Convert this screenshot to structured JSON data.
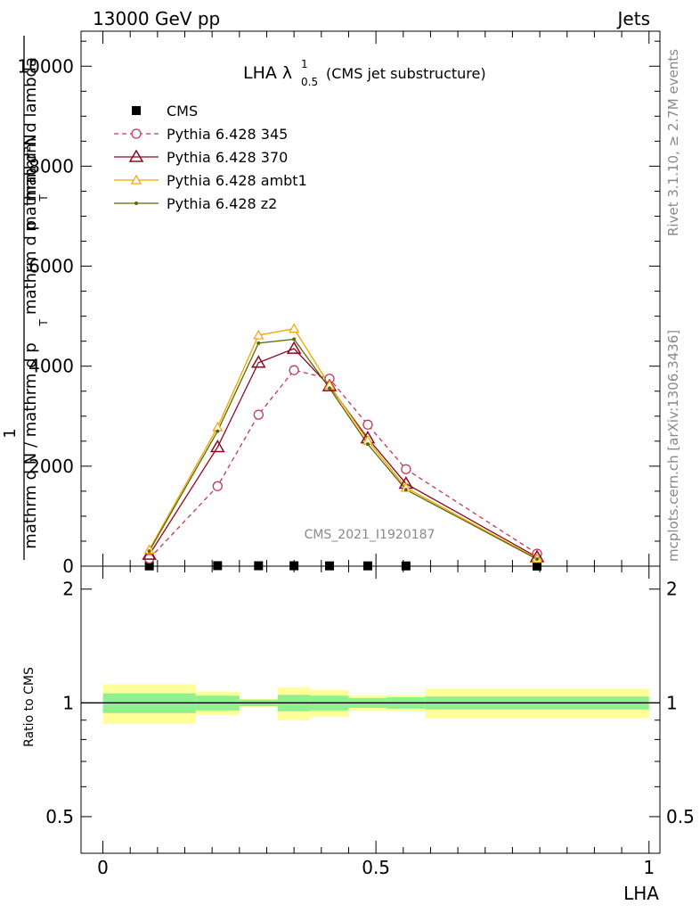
{
  "header": {
    "left": "13000 GeV pp",
    "right": "Jets"
  },
  "side_text": {
    "rivet": "Rivet 3.1.10, ≥ 2.7M events",
    "mcplots": "mcplots.cern.ch [arXiv:1306.3436]"
  },
  "watermark": "CMS_2021_I1920187",
  "chart_data": {
    "type": "line",
    "title": "LHA",
    "title_symbol": "λ",
    "title_sup": "1",
    "title_sub": "0.5",
    "title_note": "(CMS jet substructure)",
    "ylabel_parts": {
      "num_top": "1",
      "num_bottom": "mathrm d²N",
      "den_top": "mathrm d N / mathrm d p",
      "den_bottom": "mathrm d p",
      "den_tail": "mathrm d lambda",
      "sub_T": "T"
    },
    "xlabel": "LHA",
    "ratio_ylabel": "Ratio to CMS",
    "xlim": [
      -0.04,
      1.02
    ],
    "ylim": [
      0,
      10700
    ],
    "ratio_ylim": [
      0.4,
      2.3
    ],
    "main_yticks": [
      0,
      2000,
      4000,
      6000,
      8000,
      10000
    ],
    "main_ytick_labels": [
      "0",
      "2000",
      "4000",
      "6000",
      "8000",
      "10000"
    ],
    "ratio_yticks": [
      0.5,
      1,
      2
    ],
    "ratio_ytick_labels": [
      "0.5",
      "1",
      "2"
    ],
    "xticks": [
      0,
      0.5,
      1
    ],
    "xtick_labels": [
      "0",
      "0.5",
      "1"
    ],
    "bin_edges": [
      0,
      0.17,
      0.25,
      0.32,
      0.38,
      0.45,
      0.52,
      0.59,
      1.0
    ],
    "x": [
      0.085,
      0.21,
      0.285,
      0.35,
      0.415,
      0.485,
      0.555,
      0.795
    ],
    "series": [
      {
        "name": "CMS",
        "kind": "data",
        "color": "#000000",
        "values": [
          5,
          10,
          8,
          8,
          6,
          6,
          5,
          3
        ]
      },
      {
        "name": "Pythia 6.428 345",
        "kind": "mc",
        "color": "#c0395a",
        "dash": true,
        "marker": "circle",
        "values": [
          150,
          1600,
          3030,
          3920,
          3750,
          2830,
          1940,
          250
        ]
      },
      {
        "name": "Pythia 6.428 370",
        "kind": "mc",
        "color": "#8b0a1f",
        "dash": false,
        "marker": "triangle",
        "values": [
          230,
          2380,
          4070,
          4350,
          3600,
          2560,
          1650,
          180
        ]
      },
      {
        "name": "Pythia 6.428 ambt1",
        "kind": "mc",
        "color": "#f0a500",
        "dash": false,
        "marker": "triangle-small",
        "values": [
          330,
          2780,
          4620,
          4750,
          3620,
          2510,
          1570,
          150
        ]
      },
      {
        "name": "Pythia 6.428 z2",
        "kind": "mc",
        "color": "#5b6b00",
        "dash": false,
        "marker": "dot",
        "values": [
          300,
          2700,
          4460,
          4540,
          3560,
          2440,
          1530,
          140
        ]
      }
    ],
    "ratio_band_inner": {
      "color": "#90f090",
      "lo": [
        0.94,
        0.955,
        0.98,
        0.95,
        0.955,
        0.97,
        0.965,
        0.96
      ],
      "hi": [
        1.06,
        1.045,
        1.02,
        1.05,
        1.045,
        1.03,
        1.035,
        1.04
      ]
    },
    "ratio_band_outer": {
      "color": "#ffff9a",
      "lo": [
        0.88,
        0.93,
        0.975,
        0.9,
        0.92,
        0.955,
        0.95,
        0.91
      ],
      "hi": [
        1.12,
        1.07,
        1.025,
        1.1,
        1.08,
        1.045,
        1.05,
        1.09
      ]
    },
    "legend_position": "top-left"
  }
}
